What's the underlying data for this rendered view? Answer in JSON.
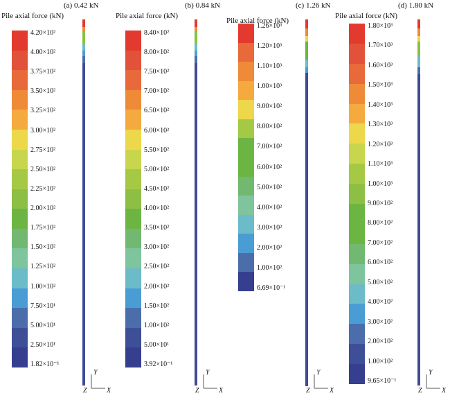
{
  "palette": [
    "#e23a2f",
    "#e2523a",
    "#e86a3a",
    "#ef8b38",
    "#f5aa40",
    "#ecd84a",
    "#c8d64d",
    "#a6c945",
    "#8cbf43",
    "#6db543",
    "#72b871",
    "#7ec49d",
    "#6bbcc8",
    "#4a9dd4",
    "#4b6eab",
    "#3d4f97",
    "#363f8f"
  ],
  "panels": [
    {
      "case_title": "(a) 0.42 kN",
      "legend_title": "Pile axial force (kN)",
      "ticks": [
        "4.20×10²",
        "4.00×10²",
        "3.75×10²",
        "3.50×10²",
        "3.25×10²",
        "3.00×10²",
        "2.75×10²",
        "2.50×10²",
        "2.25×10²",
        "2.00×10²",
        "1.75×10²",
        "1.50×10²",
        "1.25×10²",
        "1.00×10²",
        "7.50×10¹",
        "5.00×10¹",
        "2.50×10¹",
        "1.82×10⁻¹"
      ],
      "swatch_colors": [
        "#e23a2f",
        "#e2523a",
        "#e86a3a",
        "#ef8b38",
        "#f5aa40",
        "#ecd84a",
        "#c8d64d",
        "#a6c945",
        "#8cbf43",
        "#6db543",
        "#72b871",
        "#7ec49d",
        "#6bbcc8",
        "#4a9dd4",
        "#4b6eab",
        "#3d4f97",
        "#363f8f"
      ],
      "pile_segments": [
        {
          "color": "#e23a2f",
          "frac": 0.02
        },
        {
          "color": "#ef8b38",
          "frac": 0.015
        },
        {
          "color": "#8cbf43",
          "frac": 0.03
        },
        {
          "color": "#6bbcc8",
          "frac": 0.02
        },
        {
          "color": "#4a9dd4",
          "frac": 0.015
        },
        {
          "color": "#4b6eab",
          "frac": 0.02
        },
        {
          "color": "#3f4b97",
          "frac": 0.88
        }
      ],
      "axes": {
        "y": "Y",
        "x": "X",
        "z": "Z"
      }
    },
    {
      "case_title": "(b) 0.84 kN",
      "legend_title": "Pile axial force (kN)",
      "ticks": [
        "8.40×10²",
        "8.00×10²",
        "7.50×10²",
        "7.00×10²",
        "6.50×10²",
        "6.00×10²",
        "5.50×10²",
        "5.00×10²",
        "4.50×10²",
        "4.00×10²",
        "3.50×10²",
        "3.00×10²",
        "2.50×10²",
        "2.00×10²",
        "1.50×10²",
        "1.00×10²",
        "5.00×10¹",
        "3.92×10⁻¹"
      ],
      "swatch_colors": [
        "#e23a2f",
        "#e2523a",
        "#e86a3a",
        "#ef8b38",
        "#f5aa40",
        "#ecd84a",
        "#c8d64d",
        "#a6c945",
        "#8cbf43",
        "#6db543",
        "#72b871",
        "#7ec49d",
        "#6bbcc8",
        "#4a9dd4",
        "#4b6eab",
        "#3d4f97",
        "#363f8f"
      ],
      "pile_segments": [
        {
          "color": "#e23a2f",
          "frac": 0.02
        },
        {
          "color": "#ef8b38",
          "frac": 0.015
        },
        {
          "color": "#8cbf43",
          "frac": 0.03
        },
        {
          "color": "#6bbcc8",
          "frac": 0.02
        },
        {
          "color": "#4a9dd4",
          "frac": 0.015
        },
        {
          "color": "#4b6eab",
          "frac": 0.02
        },
        {
          "color": "#3f4b97",
          "frac": 0.88
        }
      ],
      "axes": {
        "y": "Y",
        "x": "X",
        "z": "Z"
      }
    },
    {
      "case_title": "(c) 1.26 kN",
      "legend_title": "Pile axial force (kN)",
      "ticks": [
        "1.26×10³",
        "1.20×10³",
        "1.10×10³",
        "1.00×10³",
        "9.00×10²",
        "8.00×10²",
        "7.00×10²",
        "6.00×10²",
        "5.00×10²",
        "4.00×10²",
        "3.00×10²",
        "2.00×10²",
        "1.00×10²",
        "6.69×10⁻¹"
      ],
      "swatch_colors": [
        "#e23a2f",
        "#e86a3a",
        "#ef8b38",
        "#f5aa40",
        "#ecd84a",
        "#a6c945",
        "#6db543",
        "#6db543",
        "#72b871",
        "#7ec49d",
        "#6bbcc8",
        "#4a9dd4",
        "#4b6eab",
        "#363f8f"
      ],
      "pile_segments": [
        {
          "color": "#e23a2f",
          "frac": 0.025
        },
        {
          "color": "#ef8b38",
          "frac": 0.02
        },
        {
          "color": "#ecd84a",
          "frac": 0.015
        },
        {
          "color": "#6db543",
          "frac": 0.05
        },
        {
          "color": "#6bbcc8",
          "frac": 0.02
        },
        {
          "color": "#4a9dd4",
          "frac": 0.015
        },
        {
          "color": "#3f4b97",
          "frac": 0.855
        }
      ],
      "axes": {
        "y": "Y",
        "x": "X",
        "z": "Z"
      }
    },
    {
      "case_title": "(d) 1.80 kN",
      "legend_title": "Pile axial force (kN)",
      "ticks": [
        "1.80×10³",
        "1.70×10³",
        "1.60×10³",
        "1.50×10³",
        "1.40×10³",
        "1.30×10³",
        "1.20×10³",
        "1.10×10³",
        "1.00×10³",
        "9.00×10²",
        "8.00×10²",
        "7.00×10²",
        "6.00×10²",
        "5.00×10²",
        "4.00×10²",
        "3.00×10²",
        "2.00×10²",
        "1.00×10²",
        "9.65×10⁻¹"
      ],
      "swatch_colors": [
        "#e23a2f",
        "#e2523a",
        "#e86a3a",
        "#ef8b38",
        "#f5aa40",
        "#ecd84a",
        "#c8d64d",
        "#a6c945",
        "#8cbf43",
        "#6db543",
        "#6db543",
        "#72b871",
        "#7ec49d",
        "#6bbcc8",
        "#4a9dd4",
        "#4b6eab",
        "#3d4f97",
        "#363f8f"
      ],
      "pile_segments": [
        {
          "color": "#e23a2f",
          "frac": 0.025
        },
        {
          "color": "#ef8b38",
          "frac": 0.02
        },
        {
          "color": "#ecd84a",
          "frac": 0.015
        },
        {
          "color": "#8cbf43",
          "frac": 0.04
        },
        {
          "color": "#6bbcc8",
          "frac": 0.03
        },
        {
          "color": "#4b6eab",
          "frac": 0.02
        },
        {
          "color": "#3f4b97",
          "frac": 0.85
        }
      ],
      "axes": {
        "y": "Y",
        "x": "X",
        "z": "Z"
      }
    }
  ]
}
